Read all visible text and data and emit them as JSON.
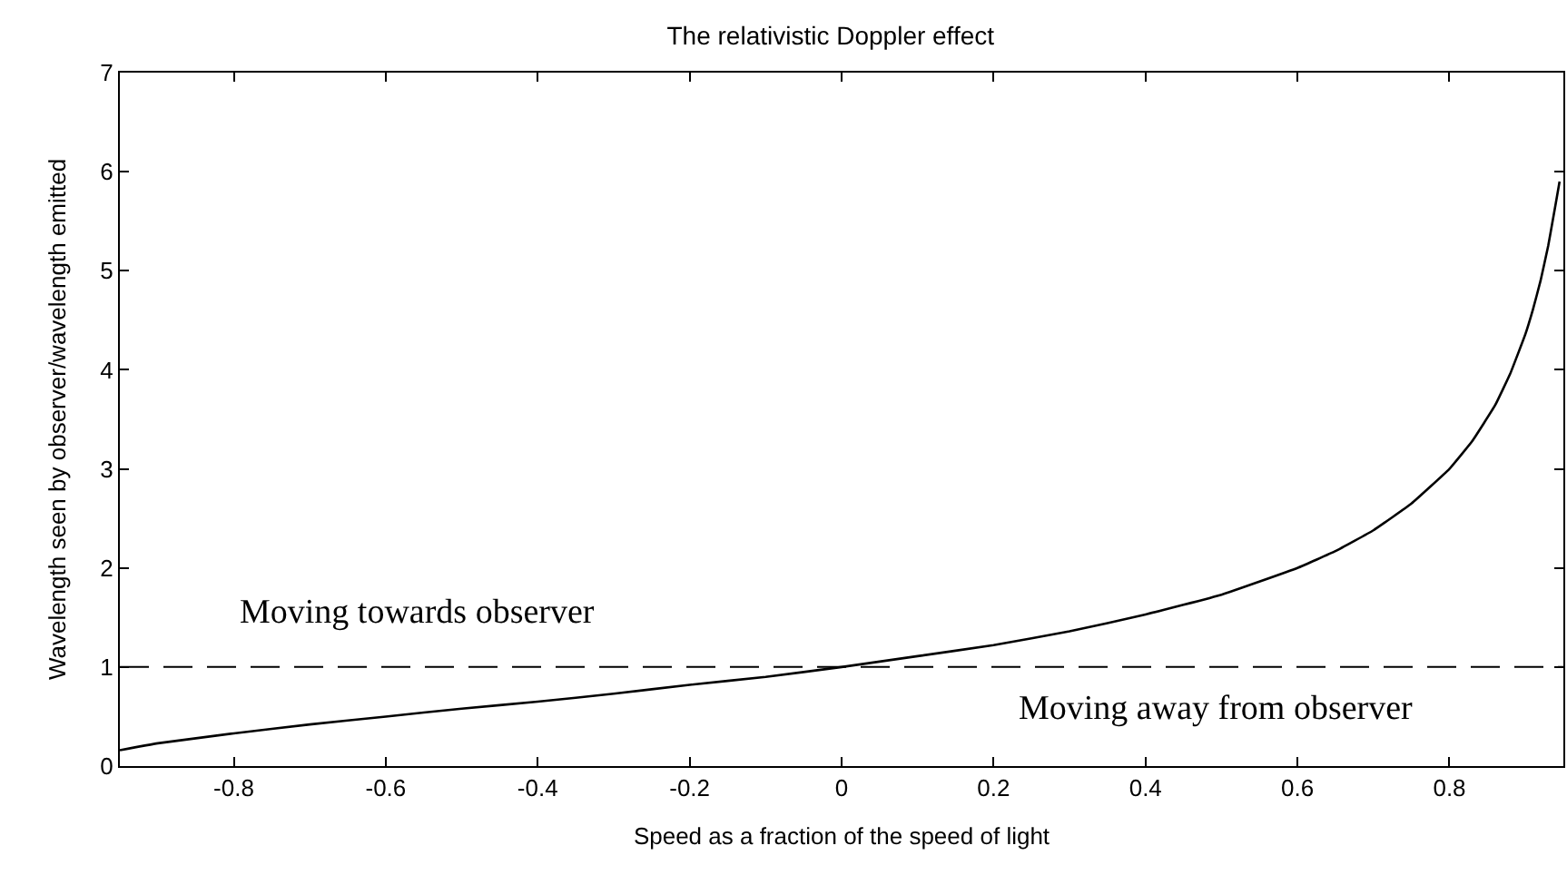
{
  "chart_data": {
    "type": "line",
    "title": "The relativistic Doppler effect",
    "xlabel": "Speed as a fraction of the speed of light",
    "ylabel": "Wavelength seen by observer/wavelength emitted",
    "x": [
      -0.95,
      -0.9,
      -0.8,
      -0.7,
      -0.6,
      -0.5,
      -0.4,
      -0.3,
      -0.2,
      -0.1,
      0,
      0.1,
      0.2,
      0.3,
      0.4,
      0.5,
      0.6,
      0.65,
      0.7,
      0.75,
      0.8,
      0.83,
      0.86,
      0.88,
      0.9,
      0.91,
      0.92,
      0.93,
      0.94,
      0.945
    ],
    "series": [
      {
        "color": "#000000",
        "values": [
          0.16,
          0.23,
          0.33,
          0.42,
          0.5,
          0.58,
          0.65,
          0.73,
          0.82,
          0.9,
          1.0,
          1.11,
          1.22,
          1.36,
          1.53,
          1.73,
          2.0,
          2.17,
          2.38,
          2.65,
          3.0,
          3.28,
          3.64,
          3.96,
          4.36,
          4.61,
          4.9,
          5.25,
          5.68,
          5.9
        ]
      }
    ],
    "xlim": [
      -0.95,
      0.95
    ],
    "xticks": [
      -0.8,
      -0.6,
      -0.4,
      -0.2,
      0,
      0.2,
      0.4,
      0.6,
      0.8
    ],
    "ylim": [
      0,
      7
    ],
    "yticks": [
      0,
      1,
      2,
      3,
      4,
      5,
      6,
      7
    ],
    "ref_lines": [
      {
        "axis": "y",
        "value": 1,
        "color": "#000000",
        "line_style": "dashed"
      }
    ],
    "annotations": [
      "Moving towards observer",
      "Moving away from observer"
    ],
    "marker": "none",
    "line_style": "solid"
  }
}
